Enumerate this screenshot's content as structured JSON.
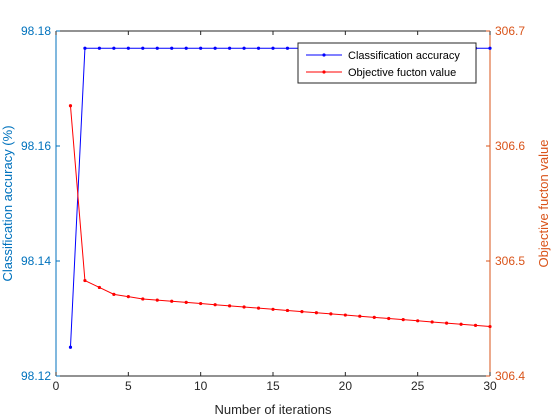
{
  "chart_data": {
    "type": "line",
    "xlabel": "Number of iterations",
    "xlim": [
      0,
      30
    ],
    "x_ticks": [
      0,
      5,
      10,
      15,
      20,
      25,
      30
    ],
    "x": [
      1,
      2,
      3,
      4,
      5,
      6,
      7,
      8,
      9,
      10,
      11,
      12,
      13,
      14,
      15,
      16,
      17,
      18,
      19,
      20,
      21,
      22,
      23,
      24,
      25,
      26,
      27,
      28,
      29,
      30
    ],
    "left_axis": {
      "label": "Classification accuracy (%)",
      "ylim": [
        98.12,
        98.18
      ],
      "ticks": [
        "98.12",
        "98.14",
        "98.16",
        "98.18"
      ],
      "color": "#0072bd"
    },
    "right_axis": {
      "label": "Objective fucton value",
      "ylim": [
        306.4,
        306.7
      ],
      "ticks": [
        "306.4",
        "306.5",
        "306.6",
        "306.7"
      ],
      "color": "#d95319"
    },
    "legend_position": "top-right",
    "series": [
      {
        "name": "Classification accuracy",
        "axis": "left",
        "color": "#0000ff",
        "values": [
          98.125,
          98.177,
          98.177,
          98.177,
          98.177,
          98.177,
          98.177,
          98.177,
          98.177,
          98.177,
          98.177,
          98.177,
          98.177,
          98.177,
          98.177,
          98.177,
          98.177,
          98.177,
          98.177,
          98.177,
          98.177,
          98.177,
          98.177,
          98.177,
          98.177,
          98.177,
          98.177,
          98.177,
          98.177,
          98.177
        ]
      },
      {
        "name": "Objective fucton value",
        "axis": "right",
        "color": "#ff0000",
        "values": [
          306.635,
          306.483,
          306.477,
          306.471,
          306.469,
          306.467,
          306.466,
          306.465,
          306.464,
          306.463,
          306.462,
          306.461,
          306.46,
          306.459,
          306.458,
          306.457,
          306.456,
          306.455,
          306.454,
          306.453,
          306.452,
          306.451,
          306.45,
          306.449,
          306.448,
          306.447,
          306.446,
          306.445,
          306.444,
          306.443
        ]
      }
    ]
  }
}
